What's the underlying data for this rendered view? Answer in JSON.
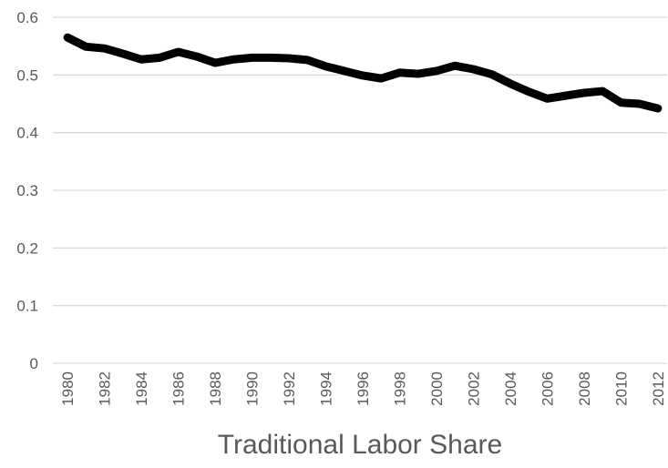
{
  "chart_data": {
    "type": "line",
    "title": "Traditional Labor Share",
    "categories": [
      "1980",
      null,
      "1982",
      null,
      "1984",
      null,
      "1986",
      null,
      "1988",
      null,
      "1990",
      null,
      "1992",
      null,
      "1994",
      null,
      "1996",
      null,
      "1998",
      null,
      "2000",
      null,
      "2002",
      null,
      "2004",
      null,
      "2006",
      null,
      "2008",
      null,
      "2010",
      null,
      "2012"
    ],
    "series": [
      {
        "name": "Traditional Labor Share",
        "color": "#000000",
        "values": [
          0.565,
          0.549,
          0.546,
          0.537,
          0.527,
          0.53,
          0.54,
          0.532,
          0.521,
          0.527,
          0.53,
          0.53,
          0.529,
          0.526,
          0.515,
          0.507,
          0.499,
          0.494,
          0.504,
          0.502,
          0.507,
          0.516,
          0.51,
          0.501,
          0.485,
          0.471,
          0.459,
          0.464,
          0.469,
          0.472,
          0.452,
          0.45,
          0.442
        ]
      }
    ],
    "ylim": [
      0,
      0.6
    ],
    "yticks": [
      0,
      0.1,
      0.2,
      0.3,
      0.4,
      0.5,
      0.6
    ],
    "grid": true
  }
}
